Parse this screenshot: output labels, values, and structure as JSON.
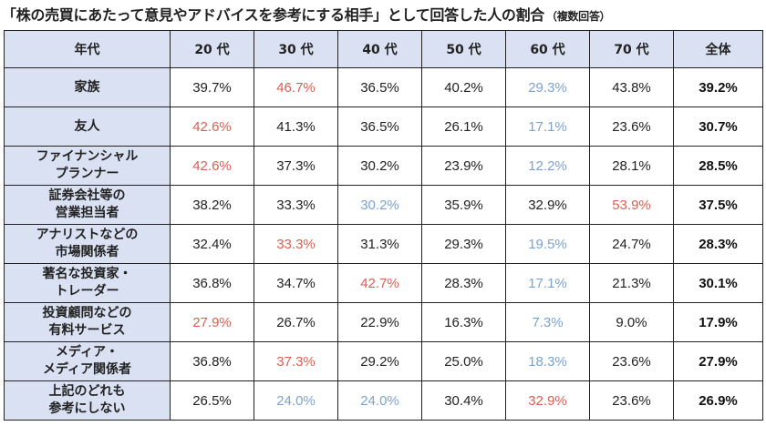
{
  "title": "「株の売買にあたって意見やアドバイスを参考にする相手」として回答した人の割合",
  "subtitle": "（複数回答）",
  "colors": {
    "header_bg": "#d9e1f2",
    "high": "#d95f52",
    "low": "#7aa3cf",
    "normal": "#222222"
  },
  "chart_data": {
    "type": "table",
    "title": "「株の売買にあたって意見やアドバイスを参考にする相手」として回答した人の割合",
    "subtitle": "（複数回答）",
    "header_label": "年代",
    "columns": [
      "20 代",
      "30 代",
      "40 代",
      "50 代",
      "60 代",
      "70 代",
      "全体"
    ],
    "rows": [
      {
        "label": "家族",
        "values": [
          "39.7%",
          "46.7%",
          "36.5%",
          "40.2%",
          "29.3%",
          "43.8%",
          "39.2%"
        ],
        "styles": [
          "n",
          "hi",
          "n",
          "n",
          "lo",
          "n",
          "total"
        ]
      },
      {
        "label": "友人",
        "values": [
          "42.6%",
          "41.3%",
          "36.5%",
          "26.1%",
          "17.1%",
          "23.6%",
          "30.7%"
        ],
        "styles": [
          "hi",
          "n",
          "n",
          "n",
          "lo",
          "n",
          "total"
        ]
      },
      {
        "label": "ファイナンシャル\nプランナー",
        "values": [
          "42.6%",
          "37.3%",
          "30.2%",
          "23.9%",
          "12.2%",
          "28.1%",
          "28.5%"
        ],
        "styles": [
          "hi",
          "n",
          "n",
          "n",
          "lo",
          "n",
          "total"
        ]
      },
      {
        "label": "証券会社等の\n営業担当者",
        "values": [
          "38.2%",
          "33.3%",
          "30.2%",
          "35.9%",
          "32.9%",
          "53.9%",
          "37.5%"
        ],
        "styles": [
          "n",
          "n",
          "lo",
          "n",
          "n",
          "hi",
          "total"
        ]
      },
      {
        "label": "アナリストなどの\n市場関係者",
        "values": [
          "32.4%",
          "33.3%",
          "31.3%",
          "29.3%",
          "19.5%",
          "24.7%",
          "28.3%"
        ],
        "styles": [
          "n",
          "hi",
          "n",
          "n",
          "lo",
          "n",
          "total"
        ]
      },
      {
        "label": "著名な投資家・\nトレーダー",
        "values": [
          "36.8%",
          "34.7%",
          "42.7%",
          "28.3%",
          "17.1%",
          "21.3%",
          "30.1%"
        ],
        "styles": [
          "n",
          "n",
          "hi",
          "n",
          "lo",
          "n",
          "total"
        ]
      },
      {
        "label": "投資顧問などの\n有料サービス",
        "values": [
          "27.9%",
          "26.7%",
          "22.9%",
          "16.3%",
          "7.3%",
          "9.0%",
          "17.9%"
        ],
        "styles": [
          "hi",
          "n",
          "n",
          "n",
          "lo",
          "n",
          "total"
        ]
      },
      {
        "label": "メディア・\nメディア関係者",
        "values": [
          "36.8%",
          "37.3%",
          "29.2%",
          "25.0%",
          "18.3%",
          "23.6%",
          "27.9%"
        ],
        "styles": [
          "n",
          "hi",
          "n",
          "n",
          "lo",
          "n",
          "total"
        ]
      },
      {
        "label": "上記のどれも\n参考にしない",
        "values": [
          "26.5%",
          "24.0%",
          "24.0%",
          "30.4%",
          "32.9%",
          "23.6%",
          "26.9%"
        ],
        "styles": [
          "n",
          "lo",
          "lo",
          "n",
          "hi",
          "n",
          "total"
        ]
      }
    ]
  }
}
